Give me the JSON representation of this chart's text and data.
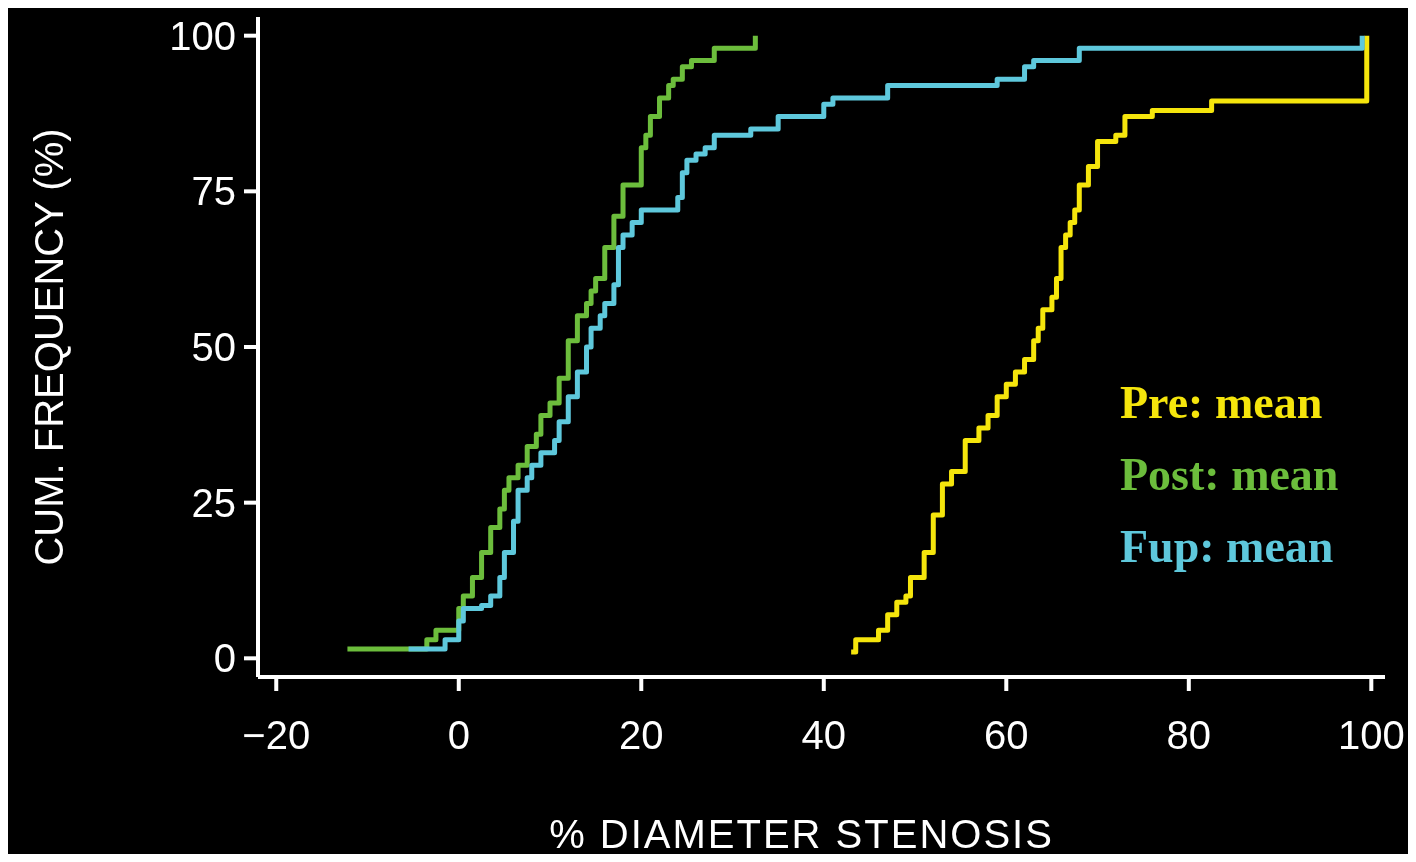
{
  "chart_data": {
    "type": "step",
    "xlabel": "% DIAMETER STENOSIS",
    "ylabel": "CUM. FREQUENCY (%)",
    "xlim": [
      -22,
      101.5
    ],
    "ylim": [
      -3,
      103
    ],
    "xticks": [
      {
        "value": -20,
        "label": "−20"
      },
      0,
      20,
      40,
      60,
      80,
      100
    ],
    "yticks": [
      0,
      25,
      50,
      75,
      100
    ],
    "grid": false,
    "legend": "right",
    "marker": "none",
    "line_style": "solid",
    "series": [
      {
        "name": "Pre: mean",
        "color": "#f5e50c",
        "x": [
          43,
          43.5,
          46,
          47,
          48,
          49,
          49.5,
          51,
          52,
          53,
          54,
          55.5,
          57,
          58,
          59,
          60,
          61,
          62,
          63,
          63.5,
          64,
          65,
          65.5,
          66,
          66.5,
          67,
          67.5,
          68,
          69,
          70,
          72,
          73,
          76,
          82.5,
          99.5
        ],
        "values": [
          1,
          3,
          4.5,
          7,
          9,
          10,
          13,
          17,
          23,
          28,
          30,
          35,
          37,
          39,
          42,
          44,
          46,
          48,
          51,
          53,
          56,
          58,
          61,
          66,
          68,
          70,
          72,
          76,
          79,
          83,
          84,
          87,
          88,
          89.5,
          100
        ]
      },
      {
        "name": "Post: mean",
        "color": "#6cbd3c",
        "x": [
          -12.2,
          -3.5,
          -2.5,
          0,
          0.5,
          1.5,
          2.5,
          3.5,
          4.5,
          5,
          5.5,
          6.5,
          7.5,
          8.5,
          9,
          10,
          11,
          12,
          13,
          14,
          14.5,
          15,
          16,
          17,
          18,
          20,
          20.5,
          21,
          22,
          23,
          23.5,
          24.5,
          25.5,
          28,
          32.5
        ],
        "values": [
          1.5,
          3,
          4.5,
          8,
          10,
          13,
          17,
          21,
          24,
          27,
          29,
          31,
          34,
          36,
          39,
          41,
          45,
          51,
          55,
          57,
          59,
          61,
          66,
          71,
          76,
          82,
          84,
          87,
          90,
          92,
          93,
          95,
          96,
          98,
          100
        ]
      },
      {
        "name": "Fup: mean",
        "color": "#5ec8dc",
        "x": [
          -5.5,
          -1.5,
          0,
          0.5,
          2.5,
          3.5,
          4.5,
          5,
          6,
          6.5,
          7.5,
          8,
          9,
          10.5,
          11,
          12,
          13,
          14,
          14.5,
          15.5,
          16,
          17,
          17.5,
          18,
          19,
          20,
          24,
          24.5,
          25,
          26,
          27,
          28,
          32,
          35,
          40,
          41,
          47,
          59,
          62,
          63,
          68,
          99
        ],
        "values": [
          1.5,
          3,
          6,
          8,
          8.5,
          10,
          13,
          17,
          22,
          27,
          29,
          31,
          33,
          35,
          38,
          42,
          46,
          50,
          53,
          55,
          57,
          60,
          66,
          68,
          70,
          72,
          74,
          78,
          80,
          81,
          82,
          84,
          85,
          87,
          89,
          90,
          92,
          93,
          95,
          96,
          98,
          100
        ]
      }
    ]
  }
}
